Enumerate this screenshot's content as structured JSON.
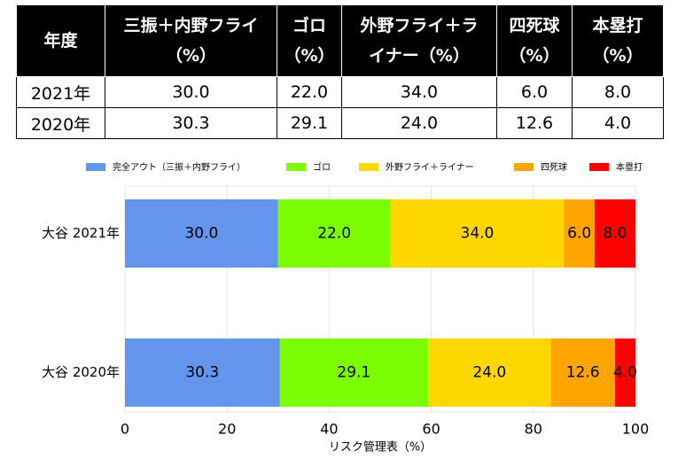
{
  "table": {
    "header": [
      [
        "年度"
      ],
      [
        "三振＋内野フライ",
        "（%）"
      ],
      [
        "ゴロ",
        "（%）"
      ],
      [
        "外野フライ＋ラ",
        "イナー（%）"
      ],
      [
        "四死球",
        "（%）"
      ],
      [
        "本塁打",
        "（%）"
      ]
    ],
    "rows": [
      [
        "2021年",
        "30.0",
        "22.0",
        "34.0",
        "6.0",
        "8.0"
      ],
      [
        "2020年",
        "30.3",
        "29.1",
        "24.0",
        "12.6",
        "4.0"
      ]
    ]
  },
  "chart_data": {
    "type": "bar",
    "orientation": "horizontal",
    "stacked": true,
    "categories": [
      "大谷 2021年",
      "大谷 2020年"
    ],
    "series": [
      {
        "name": "完全アウト（三振＋内野フライ）",
        "color": "#6495ed",
        "values": [
          30,
          30.3
        ],
        "value_labels": [
          "30.0",
          "30.3"
        ]
      },
      {
        "name": "ゴロ",
        "color": "#7cfc00",
        "values": [
          22,
          29.1
        ],
        "value_labels": [
          "22.0",
          "29.1"
        ]
      },
      {
        "name": "外野フライ＋ライナー",
        "color": "#ffd700",
        "values": [
          34,
          24
        ],
        "value_labels": [
          "34.0",
          "24.0"
        ]
      },
      {
        "name": "四死球",
        "color": "#ffa500",
        "values": [
          6,
          12.6
        ],
        "value_labels": [
          "6.0",
          "12.6"
        ]
      },
      {
        "name": "本塁打",
        "color": "#ff0000",
        "values": [
          8,
          4
        ],
        "value_labels": [
          "8.0",
          "4.0"
        ]
      }
    ],
    "xlim": [
      0,
      100
    ],
    "xticks": [
      0,
      20,
      40,
      60,
      80,
      100
    ],
    "xlabel": "リスク管理表（%）",
    "grid": true,
    "legend": "top"
  }
}
